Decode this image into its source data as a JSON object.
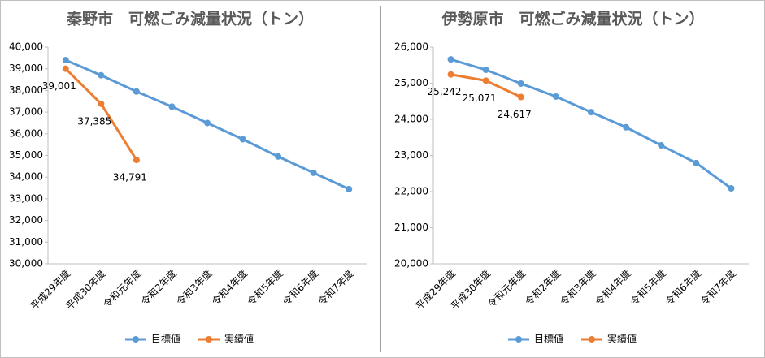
{
  "chart_data": [
    {
      "type": "line",
      "title": "秦野市　可燃ごみ減量状況（トン）",
      "categories": [
        "平成29年度",
        "平成30年度",
        "令和元年度",
        "令和2年度",
        "令和3年度",
        "令和4年度",
        "令和5年度",
        "令和6年度",
        "令和7年度"
      ],
      "series": [
        {
          "name": "目標値",
          "color": "#5b9bd5",
          "values": [
            39400,
            38700,
            37950,
            37250,
            36500,
            35750,
            34950,
            34200,
            33450
          ]
        },
        {
          "name": "実績値",
          "color": "#ed7d31",
          "values": [
            39001,
            37385,
            34791,
            null,
            null,
            null,
            null,
            null,
            null
          ],
          "value_labels": [
            "39,001",
            "37,385",
            "34,791",
            null,
            null,
            null,
            null,
            null,
            null
          ]
        }
      ],
      "ylim": [
        30000,
        40000
      ],
      "yticks": [
        {
          "value": 30000,
          "label": "30,000"
        },
        {
          "value": 31000,
          "label": "31,000"
        },
        {
          "value": 32000,
          "label": "32,000"
        },
        {
          "value": 33000,
          "label": "33,000"
        },
        {
          "value": 34000,
          "label": "34,000"
        },
        {
          "value": 35000,
          "label": "35,000"
        },
        {
          "value": 36000,
          "label": "36,000"
        },
        {
          "value": 37000,
          "label": "37,000"
        },
        {
          "value": 38000,
          "label": "38,000"
        },
        {
          "value": 39000,
          "label": "39,000"
        },
        {
          "value": 40000,
          "label": "40,000"
        }
      ],
      "legend": "bottom"
    },
    {
      "type": "line",
      "title": "伊勢原市　可燃ごみ減量状況（トン）",
      "categories": [
        "平成29年度",
        "平成30年度",
        "令和元年度",
        "令和2年度",
        "令和3年度",
        "令和4年度",
        "令和5年度",
        "令和6年度",
        "令和7年度"
      ],
      "series": [
        {
          "name": "目標値",
          "color": "#5b9bd5",
          "values": [
            25660,
            25370,
            24990,
            24630,
            24200,
            23780,
            23280,
            22790,
            22090
          ]
        },
        {
          "name": "実績値",
          "color": "#ed7d31",
          "values": [
            25242,
            25071,
            24617,
            null,
            null,
            null,
            null,
            null,
            null
          ],
          "value_labels": [
            "25,242",
            "25,071",
            "24,617",
            null,
            null,
            null,
            null,
            null,
            null
          ]
        }
      ],
      "ylim": [
        20000,
        26000
      ],
      "yticks": [
        {
          "value": 20000,
          "label": "20,000"
        },
        {
          "value": 21000,
          "label": "21,000"
        },
        {
          "value": 22000,
          "label": "22,000"
        },
        {
          "value": 23000,
          "label": "23,000"
        },
        {
          "value": 24000,
          "label": "24,000"
        },
        {
          "value": 25000,
          "label": "25,000"
        },
        {
          "value": 26000,
          "label": "26,000"
        }
      ],
      "legend": "bottom"
    }
  ]
}
